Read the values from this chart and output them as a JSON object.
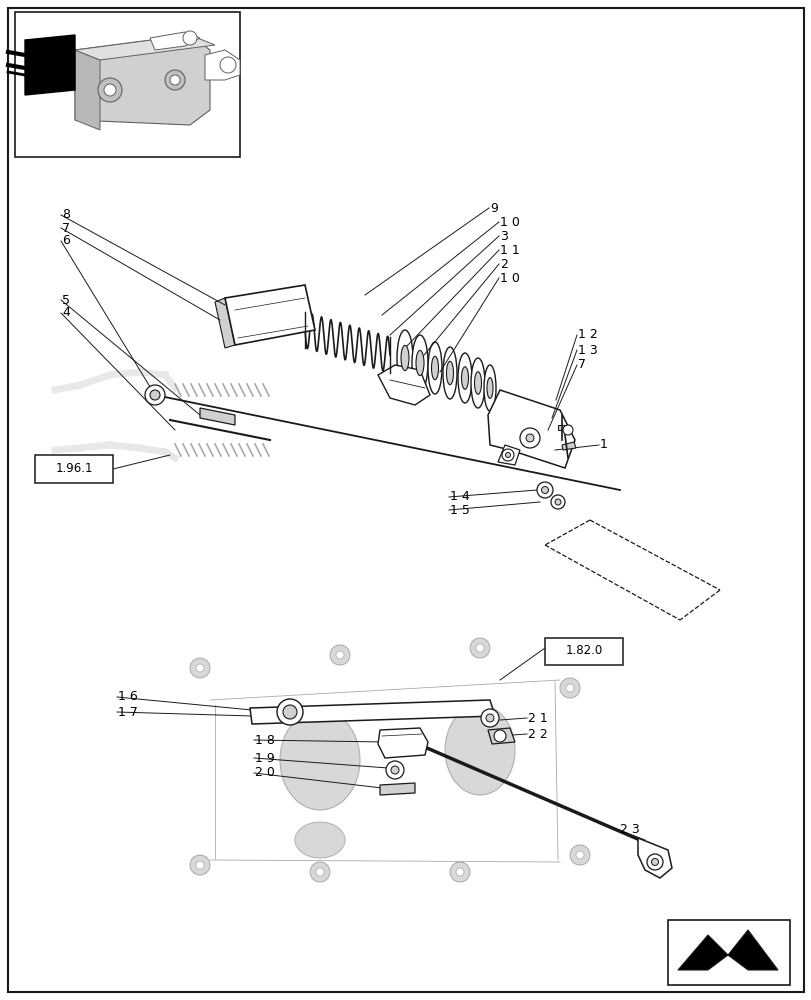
{
  "bg_color": "#ffffff",
  "line_color": "#1a1a1a",
  "gray_light": "#d0d0d0",
  "gray_med": "#a8a8a8",
  "gray_dark": "#606060",
  "fig_width": 8.12,
  "fig_height": 10.0,
  "dpi": 100
}
